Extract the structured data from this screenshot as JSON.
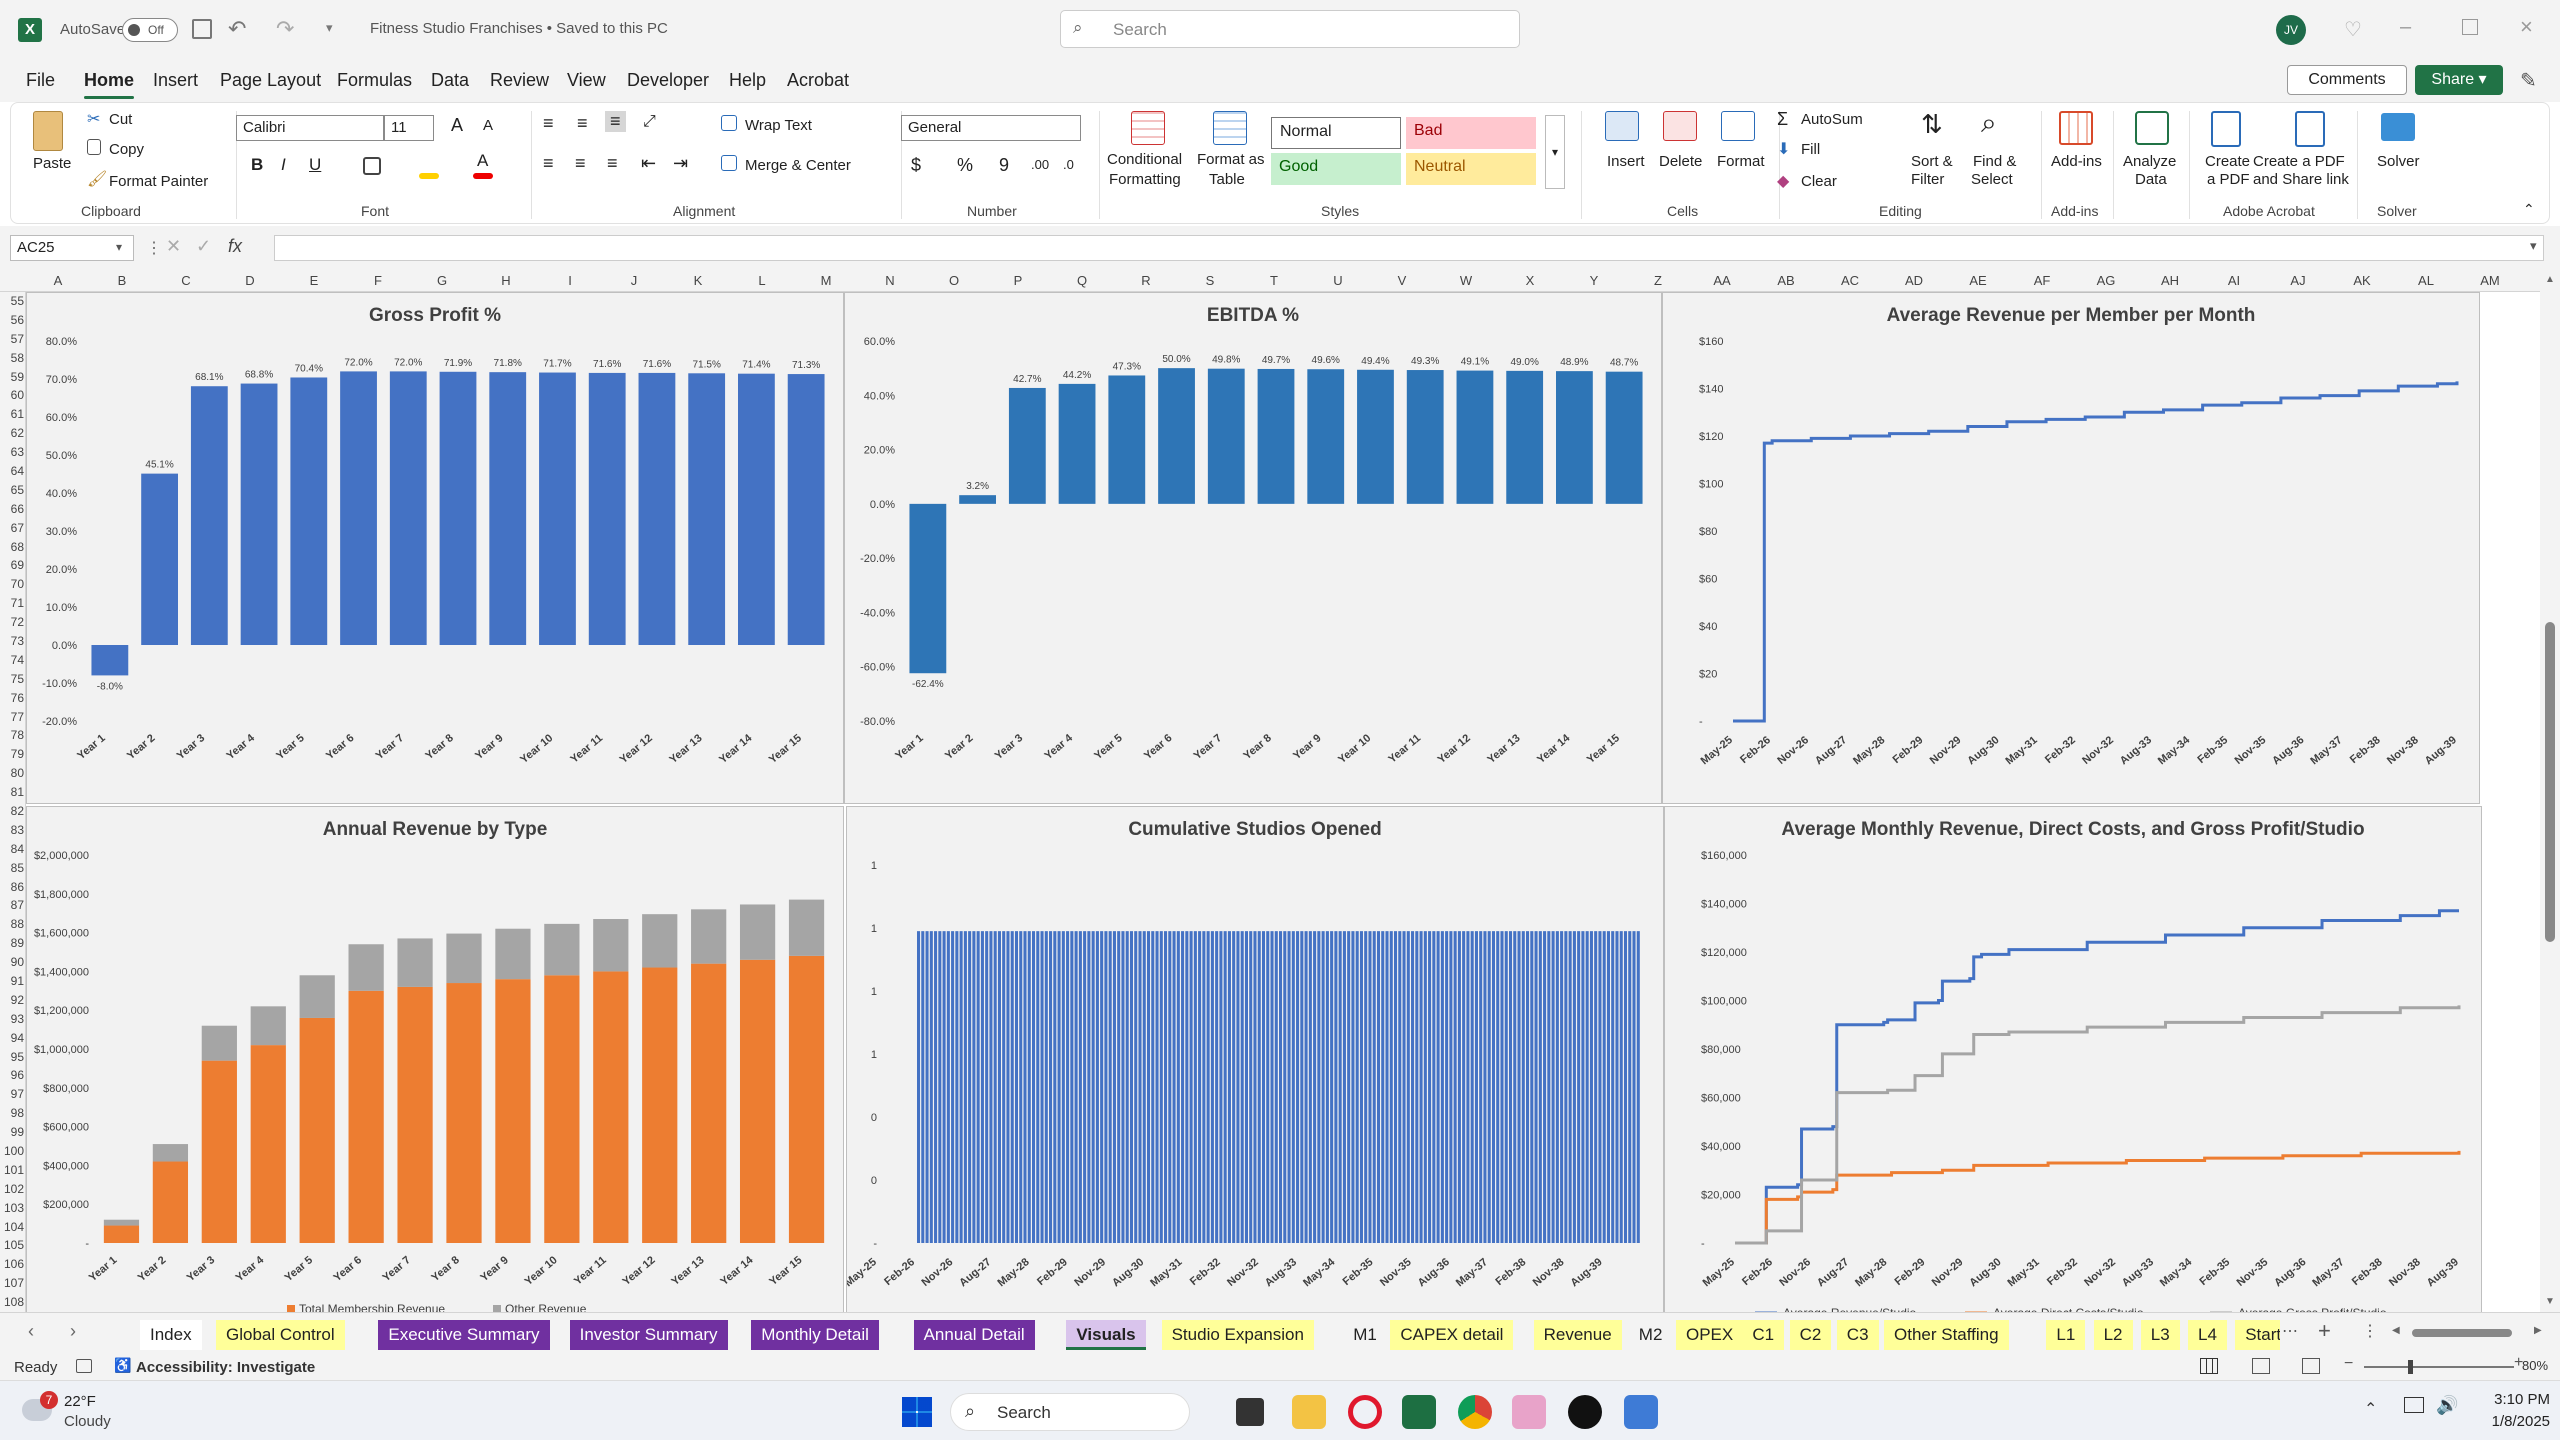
{
  "titlebar": {
    "autosave_label": "AutoSave",
    "autosave_state": "Off",
    "document_title": "Fitness Studio Franchises • Saved to this PC",
    "search_placeholder": "Search",
    "user_initials": "JV"
  },
  "menu": {
    "items": [
      "File",
      "Home",
      "Insert",
      "Page Layout",
      "Formulas",
      "Data",
      "Review",
      "View",
      "Developer",
      "Help",
      "Acrobat"
    ],
    "active": "Home",
    "comments_label": "Comments",
    "share_label": "Share"
  },
  "ribbon": {
    "clipboard": {
      "paste": "Paste",
      "cut": "Cut",
      "copy": "Copy",
      "format_painter": "Format Painter",
      "group": "Clipboard"
    },
    "font": {
      "name": "Calibri",
      "size": "11",
      "group": "Font"
    },
    "alignment": {
      "wrap_text": "Wrap Text",
      "merge_center": "Merge & Center",
      "group": "Alignment"
    },
    "number": {
      "format": "General",
      "group": "Number"
    },
    "styles": {
      "conditional": "Conditional",
      "conditional2": "Formatting",
      "format_as": "Format as",
      "table": "Table",
      "normal": "Normal",
      "bad": "Bad",
      "good": "Good",
      "neutral": "Neutral",
      "group": "Styles"
    },
    "cells": {
      "insert": "Insert",
      "delete": "Delete",
      "format": "Format",
      "group": "Cells"
    },
    "editing": {
      "autosum": "AutoSum",
      "fill": "Fill",
      "clear": "Clear",
      "sort": "Sort &",
      "filter": "Filter",
      "find": "Find &",
      "select": "Select",
      "group": "Editing"
    },
    "addins": {
      "addins": "Add-ins",
      "group": "Add-ins"
    },
    "analyze": {
      "l1": "Analyze",
      "l2": "Data"
    },
    "acrobat": {
      "pdf1": "Create",
      "pdf2": "a PDF",
      "share1": "Create a PDF",
      "share2": "and Share link",
      "group": "Adobe Acrobat"
    },
    "solver": {
      "solver": "Solver",
      "group": "Solver"
    }
  },
  "formula_bar": {
    "name_box": "AC25",
    "fx": "fx",
    "formula": ""
  },
  "columns": [
    "A",
    "B",
    "C",
    "D",
    "E",
    "F",
    "G",
    "H",
    "I",
    "J",
    "K",
    "L",
    "M",
    "N",
    "O",
    "P",
    "Q",
    "R",
    "S",
    "T",
    "U",
    "V",
    "W",
    "X",
    "Y",
    "Z",
    "AA",
    "AB",
    "AC",
    "AD",
    "AE",
    "AF",
    "AG",
    "AH",
    "AI",
    "AJ",
    "AK",
    "AL",
    "AM"
  ],
  "rows": [
    "55",
    "56",
    "57",
    "58",
    "59",
    "60",
    "61",
    "62",
    "63",
    "64",
    "65",
    "66",
    "67",
    "68",
    "69",
    "70",
    "71",
    "72",
    "73",
    "74",
    "75",
    "76",
    "77",
    "78",
    "79",
    "80",
    "81",
    "82",
    "83",
    "84",
    "85",
    "86",
    "87",
    "88",
    "89",
    "90",
    "91",
    "92",
    "93",
    "94",
    "95",
    "96",
    "97",
    "98",
    "99",
    "100",
    "101",
    "102",
    "103",
    "104",
    "105",
    "106",
    "107",
    "108"
  ],
  "charts": {
    "gross_profit": {
      "title": "Gross Profit %",
      "chart_data": {
        "type": "bar",
        "categories": [
          "Year 1",
          "Year 2",
          "Year 3",
          "Year 4",
          "Year 5",
          "Year 6",
          "Year 7",
          "Year 8",
          "Year 9",
          "Year 10",
          "Year 11",
          "Year 12",
          "Year 13",
          "Year 14",
          "Year 15"
        ],
        "values": [
          -8.0,
          45.1,
          68.1,
          68.8,
          70.4,
          72.0,
          72.0,
          71.9,
          71.8,
          71.7,
          71.6,
          71.6,
          71.5,
          71.4,
          71.3
        ],
        "labels": [
          "-8.0%",
          "45.1%",
          "68.1%",
          "68.8%",
          "70.4%",
          "72.0%",
          "72.0%",
          "71.9%",
          "71.8%",
          "71.7%",
          "71.6%",
          "71.6%",
          "71.5%",
          "71.4%",
          "71.3%"
        ],
        "ylim": [
          -20,
          80
        ],
        "yticks": [
          "80.0%",
          "70.0%",
          "60.0%",
          "50.0%",
          "40.0%",
          "30.0%",
          "20.0%",
          "10.0%",
          "0.0%",
          "-10.0%",
          "-20.0%"
        ],
        "color": "#4472c4"
      }
    },
    "ebitda": {
      "title": "EBITDA %",
      "chart_data": {
        "type": "bar",
        "categories": [
          "Year 1",
          "Year 2",
          "Year 3",
          "Year 4",
          "Year 5",
          "Year 6",
          "Year 7",
          "Year 8",
          "Year 9",
          "Year 10",
          "Year 11",
          "Year 12",
          "Year 13",
          "Year 14",
          "Year 15"
        ],
        "values": [
          -62.4,
          3.2,
          42.7,
          44.2,
          47.3,
          50.0,
          49.8,
          49.7,
          49.6,
          49.4,
          49.3,
          49.1,
          49.0,
          48.9,
          48.7
        ],
        "labels": [
          "-62.4%",
          "3.2%",
          "42.7%",
          "44.2%",
          "47.3%",
          "50.0%",
          "49.8%",
          "49.7%",
          "49.6%",
          "49.4%",
          "49.3%",
          "49.1%",
          "49.0%",
          "48.9%",
          "48.7%"
        ],
        "ylim": [
          -80,
          60
        ],
        "yticks": [
          "60.0%",
          "40.0%",
          "20.0%",
          "0.0%",
          "-20.0%",
          "-40.0%",
          "-60.0%",
          "-80.0%"
        ],
        "color": "#2e75b6"
      }
    },
    "arpm": {
      "title": "Average Revenue per Member per Month",
      "chart_data": {
        "type": "line",
        "x_ticks": [
          "May-25",
          "Feb-26",
          "Nov-26",
          "Aug-27",
          "May-28",
          "Feb-29",
          "Nov-29",
          "Aug-30",
          "May-31",
          "Feb-32",
          "Nov-32",
          "Aug-33",
          "May-34",
          "Feb-35",
          "Nov-35",
          "Aug-36",
          "May-37",
          "Feb-38",
          "Nov-38",
          "Aug-39"
        ],
        "y_ticks": [
          "$160",
          "$140",
          "$120",
          "$100",
          "$80",
          "$60",
          "$40",
          "$20",
          "-"
        ],
        "ylim": [
          0,
          160
        ],
        "series": [
          {
            "color": "#4472c4",
            "points": [
              [
                0,
                0
              ],
              [
                7,
                0
              ],
              [
                8,
                117
              ],
              [
                9,
                117
              ],
              [
                10,
                118
              ],
              [
                14,
                118
              ],
              [
                20,
                119
              ],
              [
                30,
                120
              ],
              [
                40,
                121
              ],
              [
                50,
                122
              ],
              [
                60,
                124
              ],
              [
                70,
                126
              ],
              [
                80,
                127
              ],
              [
                90,
                128
              ],
              [
                100,
                130
              ],
              [
                110,
                131
              ],
              [
                120,
                133
              ],
              [
                130,
                134
              ],
              [
                140,
                136
              ],
              [
                150,
                137
              ],
              [
                160,
                139
              ],
              [
                170,
                141
              ],
              [
                180,
                142
              ],
              [
                185,
                143
              ]
            ]
          }
        ]
      }
    },
    "annual_revenue": {
      "title": "Annual Revenue by Type",
      "chart_data": {
        "type": "bar",
        "stacked": true,
        "categories": [
          "Year 1",
          "Year 2",
          "Year 3",
          "Year 4",
          "Year 5",
          "Year 6",
          "Year 7",
          "Year 8",
          "Year 9",
          "Year 10",
          "Year 11",
          "Year 12",
          "Year 13",
          "Year 14",
          "Year 15"
        ],
        "series": [
          {
            "name": "Total Membership Revenue",
            "color": "#ed7d31",
            "values": [
              90000,
              420000,
              940000,
              1020000,
              1160000,
              1300000,
              1320000,
              1340000,
              1360000,
              1380000,
              1400000,
              1420000,
              1440000,
              1460000,
              1480000
            ]
          },
          {
            "name": "Other Revenue",
            "color": "#a5a5a5",
            "values": [
              30000,
              90000,
              180000,
              200000,
              220000,
              240000,
              250000,
              255000,
              260000,
              265000,
              270000,
              275000,
              280000,
              285000,
              290000
            ]
          }
        ],
        "ylim": [
          0,
          2000000
        ],
        "yticks": [
          "$2,000,000",
          "$1,800,000",
          "$1,600,000",
          "$1,400,000",
          "$1,200,000",
          "$1,000,000",
          "$800,000",
          "$600,000",
          "$400,000",
          "$200,000",
          "-"
        ]
      }
    },
    "cumulative_studios": {
      "title": "Cumulative Studios Opened",
      "chart_data": {
        "type": "bar",
        "x_ticks": [
          "May-25",
          "Feb-26",
          "Nov-26",
          "Aug-27",
          "May-28",
          "Feb-29",
          "Nov-29",
          "Aug-30",
          "May-31",
          "Feb-32",
          "Nov-32",
          "Aug-33",
          "May-34",
          "Feb-35",
          "Nov-35",
          "Aug-36",
          "May-37",
          "Feb-38",
          "Nov-38",
          "Aug-39"
        ],
        "y_ticks": [
          "1",
          "1",
          "1",
          "1",
          "0",
          "0",
          "-"
        ],
        "bar_count": 170,
        "bar_value": 1,
        "color": "#4472c4"
      }
    },
    "avg_monthly": {
      "title": "Average Monthly Revenue, Direct Costs, and Gross Profit/Studio",
      "chart_data": {
        "type": "line",
        "x_ticks": [
          "May-25",
          "Feb-26",
          "Nov-26",
          "Aug-27",
          "May-28",
          "Feb-29",
          "Nov-29",
          "Aug-30",
          "May-31",
          "Feb-32",
          "Nov-32",
          "Aug-33",
          "May-34",
          "Feb-35",
          "Nov-35",
          "Aug-36",
          "May-37",
          "Feb-38",
          "Nov-38",
          "Aug-39"
        ],
        "y_ticks": [
          "$160,000",
          "$140,000",
          "$120,000",
          "$100,000",
          "$80,000",
          "$60,000",
          "$40,000",
          "$20,000",
          "-"
        ],
        "ylim": [
          0,
          160000
        ],
        "series": [
          {
            "name": "Average Revenue/Studio",
            "color": "#4472c4",
            "points": [
              [
                0,
                0
              ],
              [
                7,
                0
              ],
              [
                8,
                23000
              ],
              [
                16,
                24000
              ],
              [
                17,
                47000
              ],
              [
                25,
                48000
              ],
              [
                26,
                90000
              ],
              [
                38,
                91000
              ],
              [
                39,
                92000
              ],
              [
                45,
                92000
              ],
              [
                46,
                99000
              ],
              [
                52,
                100000
              ],
              [
                53,
                108000
              ],
              [
                60,
                109000
              ],
              [
                61,
                118000
              ],
              [
                62,
                118000
              ],
              [
                63,
                119000
              ],
              [
                70,
                121000
              ],
              [
                90,
                124000
              ],
              [
                110,
                127000
              ],
              [
                130,
                130000
              ],
              [
                150,
                133000
              ],
              [
                170,
                135000
              ],
              [
                180,
                137000
              ],
              [
                185,
                137000
              ]
            ]
          },
          {
            "name": "Average Direct Costs/Studio",
            "color": "#ed7d31",
            "points": [
              [
                0,
                0
              ],
              [
                7,
                0
              ],
              [
                8,
                18000
              ],
              [
                16,
                19000
              ],
              [
                17,
                21000
              ],
              [
                25,
                22000
              ],
              [
                26,
                28000
              ],
              [
                40,
                29000
              ],
              [
                53,
                30000
              ],
              [
                61,
                32000
              ],
              [
                80,
                33000
              ],
              [
                100,
                34000
              ],
              [
                120,
                35000
              ],
              [
                140,
                36000
              ],
              [
                160,
                37000
              ],
              [
                185,
                38000
              ]
            ]
          },
          {
            "name": "Average Gross Profit/Studio",
            "color": "#a5a5a5",
            "points": [
              [
                0,
                0
              ],
              [
                7,
                0
              ],
              [
                8,
                5000
              ],
              [
                16,
                5000
              ],
              [
                17,
                26000
              ],
              [
                25,
                26000
              ],
              [
                26,
                62000
              ],
              [
                38,
                62000
              ],
              [
                39,
                63000
              ],
              [
                45,
                63000
              ],
              [
                46,
                69000
              ],
              [
                52,
                69000
              ],
              [
                53,
                78000
              ],
              [
                60,
                78000
              ],
              [
                61,
                86000
              ],
              [
                70,
                87000
              ],
              [
                90,
                89000
              ],
              [
                110,
                91000
              ],
              [
                130,
                93000
              ],
              [
                150,
                95000
              ],
              [
                170,
                97000
              ],
              [
                185,
                98000
              ]
            ]
          }
        ]
      }
    }
  },
  "sheet_tabs": [
    {
      "label": "Index",
      "color": "#ffffff",
      "text": "#222"
    },
    {
      "label": "Global Control",
      "color": "#ffff99",
      "text": "#222"
    },
    {
      "label": "Executive Summary",
      "color": "#7030a0",
      "text": "#fff"
    },
    {
      "label": "Investor Summary",
      "color": "#7030a0",
      "text": "#fff"
    },
    {
      "label": "Monthly Detail",
      "color": "#7030a0",
      "text": "#fff"
    },
    {
      "label": "Annual Detail",
      "color": "#7030a0",
      "text": "#fff"
    },
    {
      "label": "Visuals",
      "color": "#d9c4ec",
      "text": "#222",
      "active": true
    },
    {
      "label": "Studio Expansion",
      "color": "#ffff99",
      "text": "#222"
    },
    {
      "label": "M1",
      "color": "#f3f3f3",
      "text": "#222"
    },
    {
      "label": "CAPEX detail",
      "color": "#ffff99",
      "text": "#222"
    },
    {
      "label": "Revenue",
      "color": "#ffff99",
      "text": "#222"
    },
    {
      "label": "M2",
      "color": "#f3f3f3",
      "text": "#222"
    },
    {
      "label": "OPEX",
      "color": "#ffff99",
      "text": "#222"
    },
    {
      "label": "C1",
      "color": "#ffff99",
      "text": "#222"
    },
    {
      "label": "C2",
      "color": "#ffff99",
      "text": "#222"
    },
    {
      "label": "C3",
      "color": "#ffff99",
      "text": "#222"
    },
    {
      "label": "Other Staffing",
      "color": "#ffff99",
      "text": "#222"
    },
    {
      "label": "L1",
      "color": "#ffff99",
      "text": "#222"
    },
    {
      "label": "L2",
      "color": "#ffff99",
      "text": "#222"
    },
    {
      "label": "L3",
      "color": "#ffff99",
      "text": "#222"
    },
    {
      "label": "L4",
      "color": "#ffff99",
      "text": "#222"
    },
    {
      "label": "Startup Co",
      "color": "#ffff99",
      "text": "#222"
    }
  ],
  "status": {
    "ready": "Ready",
    "accessibility": "Accessibility: Investigate",
    "zoom": "80%"
  },
  "taskbar": {
    "temp": "22°F",
    "weather": "Cloudy",
    "weather_badge": "7",
    "search": "Search",
    "time": "3:10 PM",
    "date": "1/8/2025"
  }
}
